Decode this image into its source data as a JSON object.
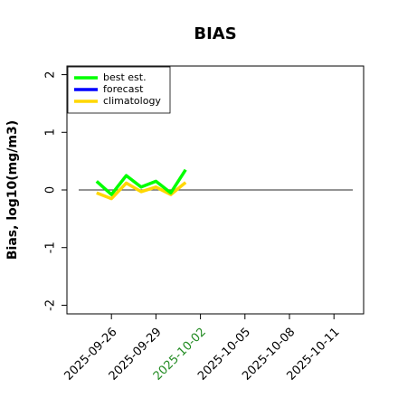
{
  "chart_data": {
    "type": "line",
    "title": "BIAS",
    "y_label": "Bias, log10(mg/m3)",
    "x": [
      "2025-09-25",
      "2025-09-26",
      "2025-09-27",
      "2025-09-28",
      "2025-09-29",
      "2025-09-30",
      "2025-10-01"
    ],
    "series": [
      {
        "name": "best est.",
        "color": "#00ff00",
        "values": [
          0.15,
          -0.08,
          0.25,
          0.05,
          0.15,
          -0.05,
          0.35
        ]
      },
      {
        "name": "forecast",
        "color": "#0000ff",
        "values": [
          null,
          null,
          null,
          null,
          null,
          null,
          null
        ]
      },
      {
        "name": "climatology",
        "color": "#ffd700",
        "values": [
          -0.05,
          -0.15,
          0.12,
          -0.03,
          0.05,
          -0.08,
          0.13
        ]
      }
    ],
    "xlim": [
      "2025-09-23",
      "2025-10-13"
    ],
    "xticks": [
      "2025-09-26",
      "2025-09-29",
      "2025-10-02",
      "2025-10-05",
      "2025-10-08",
      "2025-10-11"
    ],
    "highlight_xtick_index": 2,
    "highlight_color": "#228b22",
    "ylim": [
      -2.15,
      2.15
    ],
    "yticks": [
      2,
      1,
      0,
      -1,
      -2
    ],
    "reference_line": 0,
    "legend": "top-left"
  }
}
